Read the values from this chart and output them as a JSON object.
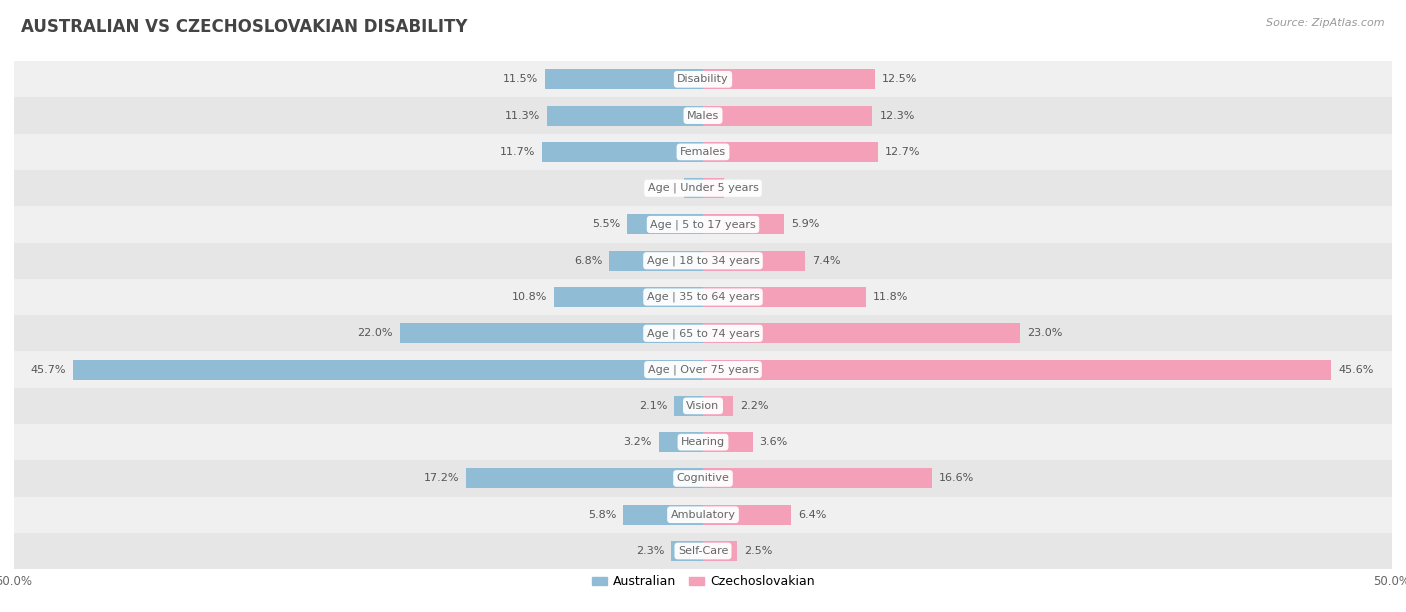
{
  "title": "AUSTRALIAN VS CZECHOSLOVAKIAN DISABILITY",
  "source": "Source: ZipAtlas.com",
  "categories": [
    "Disability",
    "Males",
    "Females",
    "Age | Under 5 years",
    "Age | 5 to 17 years",
    "Age | 18 to 34 years",
    "Age | 35 to 64 years",
    "Age | 65 to 74 years",
    "Age | Over 75 years",
    "Vision",
    "Hearing",
    "Cognitive",
    "Ambulatory",
    "Self-Care"
  ],
  "australian": [
    11.5,
    11.3,
    11.7,
    1.4,
    5.5,
    6.8,
    10.8,
    22.0,
    45.7,
    2.1,
    3.2,
    17.2,
    5.8,
    2.3
  ],
  "czechoslovakian": [
    12.5,
    12.3,
    12.7,
    1.5,
    5.9,
    7.4,
    11.8,
    23.0,
    45.6,
    2.2,
    3.6,
    16.6,
    6.4,
    2.5
  ],
  "australian_color": "#91bcd6",
  "czechoslovakian_color": "#f4a0b8",
  "bar_height": 0.55,
  "xlim": 50,
  "row_colors": [
    "#f0f0f0",
    "#e6e6e6"
  ],
  "title_fontsize": 12,
  "label_fontsize": 8,
  "value_fontsize": 8,
  "legend_fontsize": 9,
  "title_color": "#444444",
  "value_color": "#555555",
  "label_color": "#666666",
  "source_color": "#999999"
}
